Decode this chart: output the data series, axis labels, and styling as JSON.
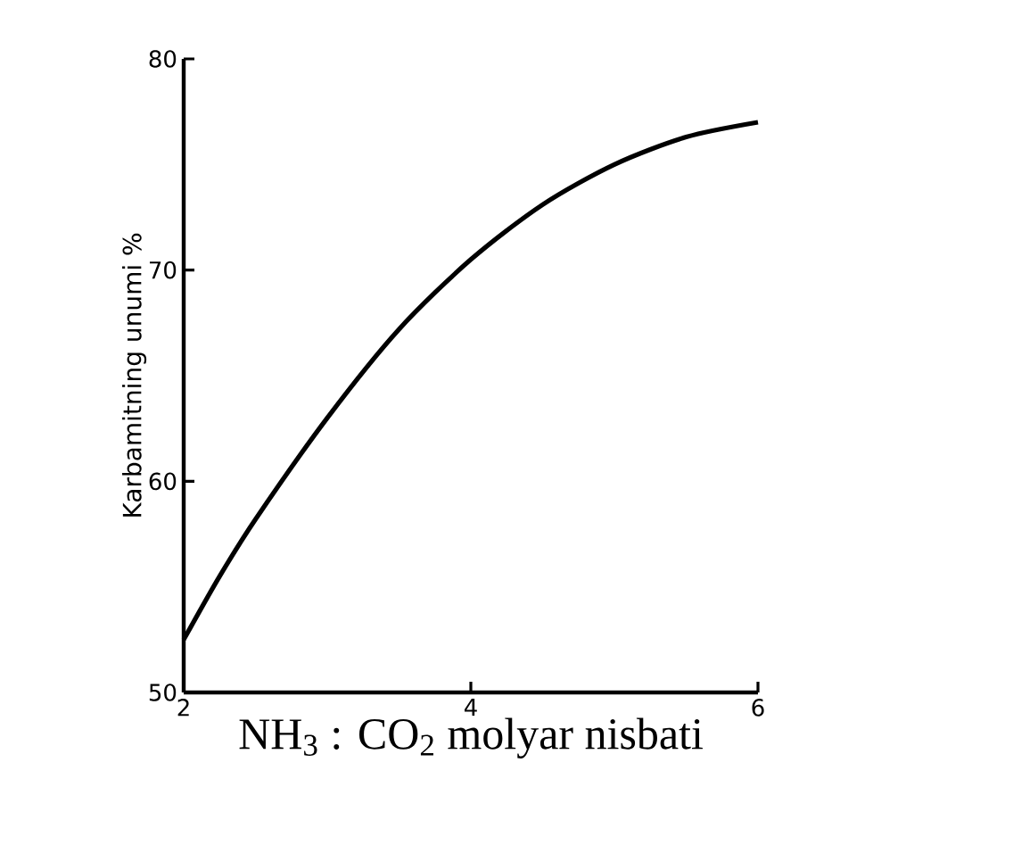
{
  "chart_data": {
    "type": "line",
    "xlabel": "NH$_{3}$ : CO$_{2}$ molyar nisbati",
    "ylabel": "Karbamitning unumi %",
    "x": [
      2,
      2.25,
      2.5,
      3,
      3.5,
      4,
      4.5,
      5,
      5.5,
      6
    ],
    "series": [
      {
        "color": "#000000",
        "values": [
          52.5,
          55.5,
          58.2,
          63,
          67.2,
          70.5,
          73.1,
          75,
          76.3,
          77
        ]
      }
    ],
    "xlim": [
      2,
      6
    ],
    "ylim": [
      50,
      80
    ],
    "xticks": [
      2,
      4,
      6
    ],
    "yticks": [
      50,
      60,
      70,
      80
    ],
    "grid": false,
    "marker": "none",
    "line_style": "solid"
  }
}
